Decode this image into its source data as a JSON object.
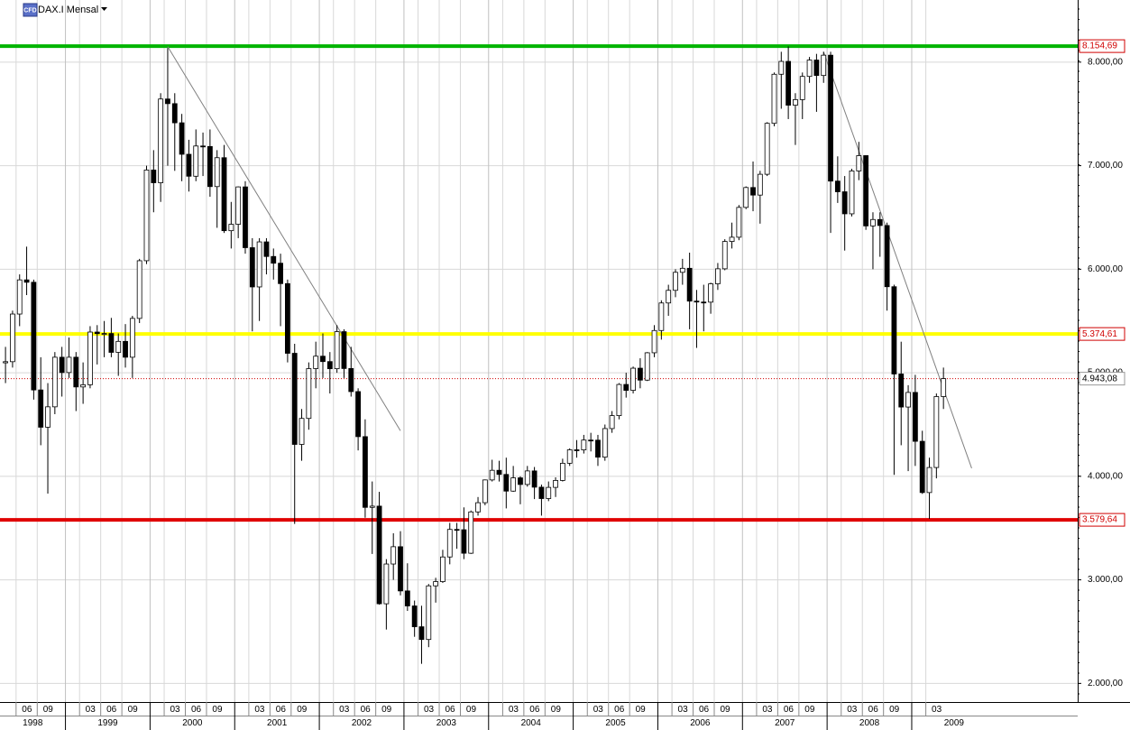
{
  "chart_data": {
    "type": "candlestick",
    "title": "DAX.I Mensal",
    "badge": "CFD",
    "x": [
      "1998-04",
      "1998-05",
      "1998-06",
      "1998-07",
      "1998-08",
      "1998-09",
      "1998-10",
      "1998-11",
      "1998-12",
      "1999-01",
      "1999-02",
      "1999-03",
      "1999-04",
      "1999-05",
      "1999-06",
      "1999-07",
      "1999-08",
      "1999-09",
      "1999-10",
      "1999-11",
      "1999-12",
      "2000-01",
      "2000-02",
      "2000-03",
      "2000-04",
      "2000-05",
      "2000-06",
      "2000-07",
      "2000-08",
      "2000-09",
      "2000-10",
      "2000-11",
      "2000-12",
      "2001-01",
      "2001-02",
      "2001-03",
      "2001-04",
      "2001-05",
      "2001-06",
      "2001-07",
      "2001-08",
      "2001-09",
      "2001-10",
      "2001-11",
      "2001-12",
      "2002-01",
      "2002-02",
      "2002-03",
      "2002-04",
      "2002-05",
      "2002-06",
      "2002-07",
      "2002-08",
      "2002-09",
      "2002-10",
      "2002-11",
      "2002-12",
      "2003-01",
      "2003-02",
      "2003-03",
      "2003-04",
      "2003-05",
      "2003-06",
      "2003-07",
      "2003-08",
      "2003-09",
      "2003-10",
      "2003-11",
      "2003-12",
      "2004-01",
      "2004-02",
      "2004-03",
      "2004-04",
      "2004-05",
      "2004-06",
      "2004-07",
      "2004-08",
      "2004-09",
      "2004-10",
      "2004-11",
      "2004-12",
      "2005-01",
      "2005-02",
      "2005-03",
      "2005-04",
      "2005-05",
      "2005-06",
      "2005-07",
      "2005-08",
      "2005-09",
      "2005-10",
      "2005-11",
      "2005-12",
      "2006-01",
      "2006-02",
      "2006-03",
      "2006-04",
      "2006-05",
      "2006-06",
      "2006-07",
      "2006-08",
      "2006-09",
      "2006-10",
      "2006-11",
      "2006-12",
      "2007-01",
      "2007-02",
      "2007-03",
      "2007-04",
      "2007-05",
      "2007-06",
      "2007-07",
      "2007-08",
      "2007-09",
      "2007-10",
      "2007-11",
      "2007-12",
      "2008-01",
      "2008-02",
      "2008-03",
      "2008-04",
      "2008-05",
      "2008-06",
      "2008-07",
      "2008-08",
      "2008-09",
      "2008-10",
      "2008-11",
      "2008-12",
      "2009-01",
      "2009-02",
      "2009-03",
      "2009-04",
      "2009-05"
    ],
    "open": [
      5096,
      5107,
      5567,
      5897,
      5874,
      4834,
      4474,
      4671,
      5150,
      5002,
      5150,
      4863,
      4884,
      5393,
      5378,
      5379,
      5197,
      5303,
      5150,
      5525,
      6082,
      6958,
      6835,
      7644,
      7599,
      7414,
      7110,
      6898,
      7190,
      7185,
      6798,
      7077,
      6372,
      6434,
      6795,
      6208,
      5829,
      6264,
      6123,
      6058,
      5861,
      5188,
      4308,
      4559,
      5040,
      5160,
      5108,
      5039,
      5397,
      5041,
      4818,
      4383,
      3700,
      3712,
      2769,
      3153,
      3320,
      2893,
      2748,
      2547,
      2424,
      2942,
      2983,
      3221,
      3487,
      3484,
      3257,
      3656,
      3745,
      3965,
      4058,
      4018,
      3857,
      3985,
      3921,
      4052,
      3895,
      3785,
      3893,
      3960,
      4126,
      4256,
      4255,
      4350,
      4349,
      4185,
      4461,
      4586,
      4887,
      4830,
      5044,
      4929,
      5193,
      5408,
      5674,
      5796,
      5970,
      6009,
      5692,
      5683,
      5682,
      5859,
      6004,
      6268,
      6309,
      6597,
      6789,
      6716,
      6917,
      7409,
      7883,
      8007,
      7584,
      7638,
      7862,
      8020,
      7871,
      8067,
      6851,
      6748,
      6535,
      6949,
      7097,
      6418,
      6480,
      6422,
      5831,
      4988,
      4669,
      4810,
      4338,
      3843,
      4085,
      4770
    ],
    "high": [
      5250,
      5600,
      5950,
      6218,
      5900,
      5150,
      4900,
      5200,
      5250,
      5340,
      5200,
      5100,
      5450,
      5460,
      5500,
      5530,
      5380,
      5470,
      5550,
      6100,
      7000,
      7150,
      7700,
      8136,
      7700,
      7500,
      7250,
      7350,
      7320,
      7350,
      7150,
      7200,
      6650,
      6800,
      6850,
      6300,
      6300,
      6300,
      6200,
      6150,
      5900,
      5280,
      4650,
      5100,
      5300,
      5380,
      5200,
      5460,
      5420,
      5250,
      4850,
      4550,
      3950,
      3850,
      3200,
      3450,
      3470,
      3160,
      2800,
      2750,
      2960,
      3020,
      3290,
      3550,
      3550,
      3700,
      3670,
      3800,
      3970,
      4160,
      4150,
      4180,
      4100,
      4000,
      4100,
      4090,
      3920,
      3950,
      3990,
      4170,
      4270,
      4350,
      4400,
      4420,
      4400,
      4500,
      4630,
      4900,
      5000,
      5060,
      5140,
      5200,
      5460,
      5700,
      5850,
      6000,
      6100,
      6160,
      5800,
      5850,
      5870,
      6060,
      6290,
      6450,
      6620,
      6800,
      7040,
      6950,
      7420,
      7900,
      8100,
      8151,
      7700,
      7900,
      8050,
      8080,
      8100,
      8100,
      7090,
      6900,
      6970,
      7230,
      7100,
      6550,
      6550,
      6450,
      5850,
      5300,
      4880,
      4980,
      4440,
      4180,
      4800,
      5050
    ],
    "low": [
      4900,
      5050,
      5450,
      5750,
      4740,
      4300,
      3833,
      4600,
      4770,
      4950,
      4630,
      4700,
      4850,
      5080,
      5150,
      5150,
      4970,
      5050,
      4950,
      5480,
      6050,
      6550,
      6650,
      7000,
      6950,
      6850,
      6750,
      6850,
      6900,
      6700,
      6400,
      6350,
      6200,
      6300,
      6150,
      5400,
      5500,
      5950,
      5900,
      5450,
      5100,
      3540,
      4150,
      4450,
      4850,
      4950,
      4800,
      5000,
      4950,
      4770,
      4250,
      3600,
      3250,
      2760,
      2520,
      3000,
      2850,
      2700,
      2450,
      2189,
      2350,
      2780,
      2970,
      3150,
      3300,
      3200,
      3250,
      3620,
      3720,
      3950,
      3950,
      3690,
      3850,
      3730,
      3900,
      3780,
      3620,
      3760,
      3800,
      3950,
      4100,
      4180,
      4220,
      4240,
      4100,
      4150,
      4420,
      4550,
      4760,
      4800,
      4850,
      4920,
      5150,
      5320,
      5550,
      5730,
      5850,
      5420,
      5240,
      5400,
      5570,
      5800,
      5990,
      6200,
      6280,
      6580,
      6560,
      6440,
      6900,
      7380,
      7550,
      7450,
      7200,
      7450,
      7800,
      7520,
      7800,
      6350,
      6640,
      6180,
      6510,
      6860,
      6380,
      6000,
      6120,
      5600,
      4014,
      4300,
      4050,
      4100,
      3830,
      3589,
      3980,
      4650
    ],
    "close": [
      5107,
      5567,
      5897,
      5874,
      4834,
      4474,
      4671,
      5150,
      5002,
      5150,
      4863,
      4884,
      5393,
      5378,
      5379,
      5197,
      5303,
      5150,
      5525,
      6082,
      6958,
      6835,
      7644,
      7599,
      7414,
      7110,
      6898,
      7190,
      7185,
      6798,
      7077,
      6372,
      6434,
      6795,
      6208,
      5829,
      6264,
      6123,
      6058,
      5861,
      5188,
      4308,
      4559,
      5040,
      5160,
      5108,
      5039,
      5397,
      5041,
      4818,
      4383,
      3700,
      3712,
      2769,
      3153,
      3320,
      2893,
      2748,
      2547,
      2424,
      2942,
      2983,
      3221,
      3487,
      3484,
      3257,
      3656,
      3745,
      3965,
      4058,
      4018,
      3857,
      3985,
      3921,
      4052,
      3895,
      3785,
      3893,
      3960,
      4126,
      4256,
      4255,
      4350,
      4349,
      4185,
      4461,
      4586,
      4887,
      4830,
      5044,
      4929,
      5193,
      5408,
      5674,
      5796,
      5970,
      6009,
      5692,
      5683,
      5682,
      5859,
      6004,
      6268,
      6309,
      6597,
      6789,
      6716,
      6917,
      7409,
      7883,
      8007,
      7584,
      7638,
      7862,
      8020,
      7871,
      8067,
      6851,
      6748,
      6535,
      6949,
      7097,
      6418,
      6480,
      6422,
      5831,
      4988,
      4669,
      4810,
      4338,
      3843,
      4085,
      4770,
      4943.08
    ],
    "up_color": "#ffffff",
    "down_color": "#000000",
    "ylim": [
      1820,
      8600
    ],
    "yticks": [
      {
        "value": 2000,
        "label": "2.000,00"
      },
      {
        "value": 3000,
        "label": "3.000,00"
      },
      {
        "value": 4000,
        "label": "4.000,00"
      },
      {
        "value": 5000,
        "label": "5.000,00"
      },
      {
        "value": 6000,
        "label": "6.000,00"
      },
      {
        "value": 7000,
        "label": "7.000,00"
      },
      {
        "value": 8000,
        "label": "8.000,00"
      }
    ],
    "xticks": [
      {
        "value": "1998-06",
        "label": "06"
      },
      {
        "value": "1998-09",
        "label": "09"
      },
      {
        "value": "1999-03",
        "label": "03"
      },
      {
        "value": "1999-06",
        "label": "06"
      },
      {
        "value": "1999-09",
        "label": "09"
      },
      {
        "value": "2000-03",
        "label": "03"
      },
      {
        "value": "2000-06",
        "label": "06"
      },
      {
        "value": "2000-09",
        "label": "09"
      },
      {
        "value": "2001-03",
        "label": "03"
      },
      {
        "value": "2001-06",
        "label": "06"
      },
      {
        "value": "2001-09",
        "label": "09"
      },
      {
        "value": "2002-03",
        "label": "03"
      },
      {
        "value": "2002-06",
        "label": "06"
      },
      {
        "value": "2002-09",
        "label": "09"
      },
      {
        "value": "2003-03",
        "label": "03"
      },
      {
        "value": "2003-06",
        "label": "06"
      },
      {
        "value": "2003-09",
        "label": "09"
      },
      {
        "value": "2004-03",
        "label": "03"
      },
      {
        "value": "2004-06",
        "label": "06"
      },
      {
        "value": "2004-09",
        "label": "09"
      },
      {
        "value": "2005-03",
        "label": "03"
      },
      {
        "value": "2005-06",
        "label": "06"
      },
      {
        "value": "2005-09",
        "label": "09"
      },
      {
        "value": "2006-03",
        "label": "03"
      },
      {
        "value": "2006-06",
        "label": "06"
      },
      {
        "value": "2006-09",
        "label": "09"
      },
      {
        "value": "2007-03",
        "label": "03"
      },
      {
        "value": "2007-06",
        "label": "06"
      },
      {
        "value": "2007-09",
        "label": "09"
      },
      {
        "value": "2008-03",
        "label": "03"
      },
      {
        "value": "2008-06",
        "label": "06"
      },
      {
        "value": "2008-09",
        "label": "09"
      },
      {
        "value": "2009-03",
        "label": "03"
      }
    ],
    "year_labels": [
      "1998",
      "1999",
      "2000",
      "2001",
      "2002",
      "2003",
      "2004",
      "2005",
      "2006",
      "2007",
      "2008",
      "2009"
    ],
    "grid": true,
    "levels": [
      {
        "value": 8154.69,
        "label": "8.154,69",
        "color": "#00b400"
      },
      {
        "value": 5374.61,
        "label": "5.374,61",
        "color": "#ffff00"
      },
      {
        "value": 3579.64,
        "label": "3.579,64",
        "color": "#e00000"
      }
    ],
    "current_price": {
      "value": 4943.08,
      "label": "4.943,08",
      "color": "#d00000"
    },
    "trendlines": [
      {
        "x": [
          "2000-03",
          "2002-12"
        ],
        "y": [
          8150,
          4440
        ],
        "color": "#808080"
      },
      {
        "x": [
          "2007-12",
          "2009-09"
        ],
        "y": [
          8100,
          4078
        ],
        "color": "#808080"
      }
    ]
  }
}
